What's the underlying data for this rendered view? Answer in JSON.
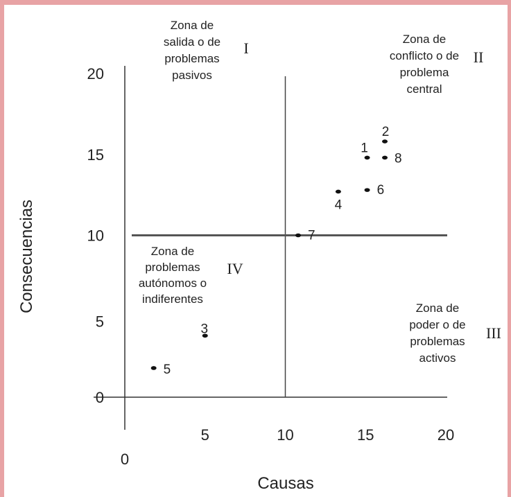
{
  "chart_data": {
    "type": "scatter",
    "title": "",
    "xlabel": "Causas",
    "ylabel": "Consecuencias",
    "xlim": [
      0,
      20
    ],
    "ylim": [
      0,
      20
    ],
    "x_ticks": [
      "0",
      "5",
      "10",
      "15",
      "20"
    ],
    "y_ticks": [
      "0",
      "5",
      "10",
      "15",
      "20"
    ],
    "dividers": {
      "x": 10,
      "y": 10
    },
    "grid": false,
    "points": [
      {
        "label": "1",
        "x": 15.1,
        "y": 14.8
      },
      {
        "label": "2",
        "x": 16.2,
        "y": 15.8
      },
      {
        "label": "3",
        "x": 5.0,
        "y": 3.8
      },
      {
        "label": "4",
        "x": 13.3,
        "y": 12.7
      },
      {
        "label": "5",
        "x": 1.8,
        "y": 1.8
      },
      {
        "label": "6",
        "x": 15.1,
        "y": 12.8
      },
      {
        "label": "7",
        "x": 10.8,
        "y": 10.0
      },
      {
        "label": "8",
        "x": 16.2,
        "y": 14.8
      }
    ],
    "zones": [
      {
        "numeral": "I",
        "lines": [
          "Zona de",
          "salida o de",
          "problemas",
          "pasivos"
        ]
      },
      {
        "numeral": "II",
        "lines": [
          "Zona de",
          "conflicto o de",
          "problema",
          "central"
        ]
      },
      {
        "numeral": "III",
        "lines": [
          "Zona de",
          "poder o de",
          "problemas",
          "activos"
        ]
      },
      {
        "numeral": "IV",
        "lines": [
          "Zona de",
          "problemas",
          "autónomos o",
          "indiferentes"
        ]
      }
    ]
  }
}
